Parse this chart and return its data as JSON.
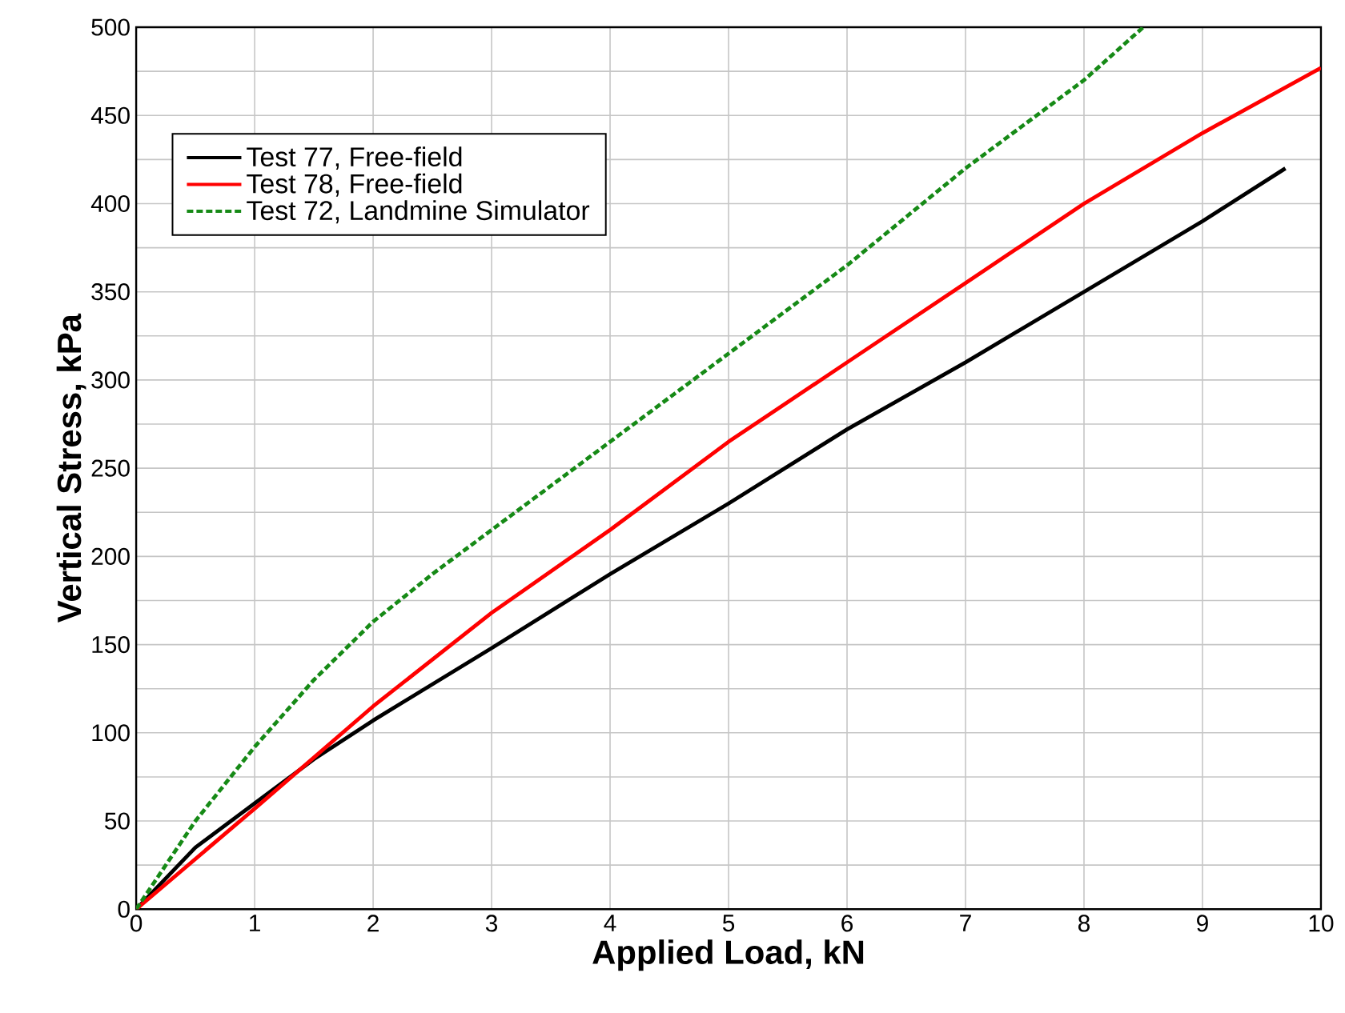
{
  "chart_data": {
    "type": "line",
    "xlabel": "Applied Load, kN",
    "ylabel": "Vertical Stress, kPa",
    "xlim": [
      0,
      10
    ],
    "ylim": [
      0,
      500
    ],
    "xticks": [
      0,
      1,
      2,
      3,
      4,
      5,
      6,
      7,
      8,
      9,
      10
    ],
    "yticks": [
      0,
      {
        "value": 25,
        "label": null
      },
      50,
      {
        "value": 75,
        "label": null
      },
      100,
      {
        "value": 125,
        "label": null
      },
      150,
      {
        "value": 175,
        "label": null
      },
      200,
      {
        "value": 225,
        "label": null
      },
      250,
      {
        "value": 275,
        "label": null
      },
      300,
      {
        "value": 325,
        "label": null
      },
      350,
      {
        "value": 375,
        "label": null
      },
      400,
      {
        "value": 425,
        "label": null
      },
      450,
      {
        "value": 475,
        "label": null
      },
      500
    ],
    "grid": true,
    "legend": "top left",
    "marker": "none",
    "series": [
      {
        "name": "Test 77, Free-field",
        "color": "#000000",
        "line_style": "solid",
        "x": [
          0,
          0.5,
          1,
          1.5,
          2,
          3,
          4,
          5,
          6,
          7,
          8,
          9,
          9.7
        ],
        "values": [
          0,
          35,
          60,
          85,
          107,
          148,
          190,
          230,
          272,
          310,
          350,
          390,
          420
        ]
      },
      {
        "name": "Test 78, Free-field",
        "color": "#ff0000",
        "line_style": "solid",
        "x": [
          0,
          1,
          2,
          3,
          4,
          5,
          6,
          7,
          8,
          9,
          10
        ],
        "values": [
          0,
          57,
          115,
          168,
          215,
          265,
          310,
          355,
          400,
          440,
          477
        ]
      },
      {
        "name": "Test 72, Landmine Simulator",
        "color": "#168a16",
        "line_style": "dashed",
        "x": [
          0,
          0.5,
          1,
          1.5,
          2,
          2.5,
          3,
          4,
          5,
          6,
          7,
          8,
          8.5
        ],
        "values": [
          0,
          50,
          92,
          130,
          163,
          190,
          215,
          265,
          315,
          365,
          420,
          470,
          500
        ]
      }
    ]
  }
}
